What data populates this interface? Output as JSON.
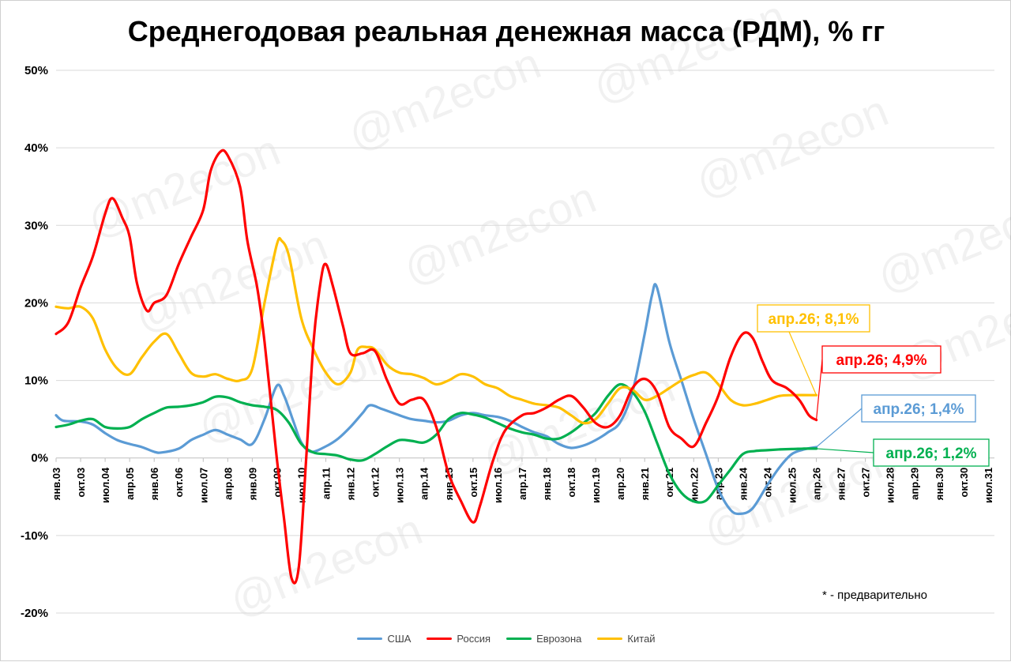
{
  "chart_data": {
    "type": "line",
    "title": "Среднегодовая реальная денежная масса (РДМ), % гг",
    "note": "* - предварительно",
    "watermark": "@m2econ",
    "ylim": [
      -20,
      50
    ],
    "yticks": [
      -20,
      -10,
      0,
      10,
      20,
      30,
      40,
      50
    ],
    "ytick_labels": [
      "-20%",
      "-10%",
      "0%",
      "10%",
      "20%",
      "30%",
      "40%",
      "50%"
    ],
    "xticks": [
      "янв.03",
      "окт.03",
      "июл.04",
      "апр.05",
      "янв.06",
      "окт.06",
      "июл.07",
      "апр.08",
      "янв.09",
      "окт.09",
      "июл.10",
      "апр.11",
      "янв.12",
      "окт.12",
      "июл.13",
      "апр.14",
      "янв.15",
      "окт.15",
      "июл.16",
      "апр.17",
      "янв.18",
      "окт.18",
      "июл.19",
      "апр.20",
      "янв.21",
      "окт.21",
      "июл.22",
      "апр.23",
      "янв.24",
      "окт.24",
      "июл.25",
      "апр.26",
      "янв.27",
      "окт.27",
      "июл.28",
      "апр.29",
      "янв.30",
      "окт.30",
      "июл.31"
    ],
    "x_step_months": 9,
    "grid": "horizontal",
    "legend_position": "bottom",
    "series": [
      {
        "name": "США",
        "color": "#5B9BD5",
        "points": [
          [
            0,
            5.5
          ],
          [
            0.3,
            4.8
          ],
          [
            1,
            4.7
          ],
          [
            1.5,
            4.3
          ],
          [
            2,
            3.2
          ],
          [
            2.5,
            2.3
          ],
          [
            3,
            1.8
          ],
          [
            3.5,
            1.4
          ],
          [
            4,
            0.8
          ],
          [
            4.3,
            0.7
          ],
          [
            5,
            1.2
          ],
          [
            5.5,
            2.3
          ],
          [
            6,
            3.0
          ],
          [
            6.5,
            3.6
          ],
          [
            7,
            3.0
          ],
          [
            7.5,
            2.4
          ],
          [
            8,
            1.8
          ],
          [
            8.5,
            5.0
          ],
          [
            9,
            9.3
          ],
          [
            9.3,
            8.0
          ],
          [
            9.7,
            4.5
          ],
          [
            10,
            2.0
          ],
          [
            10.4,
            0.8
          ],
          [
            11,
            1.5
          ],
          [
            11.5,
            2.5
          ],
          [
            12,
            4.0
          ],
          [
            12.5,
            5.8
          ],
          [
            12.8,
            6.8
          ],
          [
            13.3,
            6.3
          ],
          [
            14,
            5.5
          ],
          [
            14.5,
            5.0
          ],
          [
            15,
            4.8
          ],
          [
            15.5,
            4.6
          ],
          [
            16,
            4.8
          ],
          [
            16.5,
            5.5
          ],
          [
            17,
            5.8
          ],
          [
            17.5,
            5.5
          ],
          [
            18,
            5.3
          ],
          [
            18.5,
            4.8
          ],
          [
            19,
            4.0
          ],
          [
            19.5,
            3.3
          ],
          [
            20,
            2.8
          ],
          [
            20.5,
            1.8
          ],
          [
            21,
            1.3
          ],
          [
            21.5,
            1.6
          ],
          [
            22,
            2.3
          ],
          [
            22.5,
            3.3
          ],
          [
            23,
            4.6
          ],
          [
            23.5,
            8.5
          ],
          [
            24,
            16.0
          ],
          [
            24.3,
            21.0
          ],
          [
            24.5,
            22.0
          ],
          [
            25,
            15.0
          ],
          [
            25.5,
            10.0
          ],
          [
            26,
            5.0
          ],
          [
            26.5,
            0.5
          ],
          [
            27,
            -4.0
          ],
          [
            27.5,
            -6.7
          ],
          [
            27.9,
            -7.2
          ],
          [
            28.4,
            -6.5
          ],
          [
            29,
            -3.5
          ],
          [
            29.5,
            -1.2
          ],
          [
            30,
            0.5
          ],
          [
            30.5,
            1.1
          ],
          [
            31,
            1.4
          ]
        ]
      },
      {
        "name": "Россия",
        "color": "#FF0000",
        "points": [
          [
            0,
            16.0
          ],
          [
            0.5,
            17.5
          ],
          [
            1,
            22.0
          ],
          [
            1.5,
            26.0
          ],
          [
            2,
            31.5
          ],
          [
            2.3,
            33.5
          ],
          [
            2.7,
            31.0
          ],
          [
            3,
            28.5
          ],
          [
            3.3,
            22.5
          ],
          [
            3.7,
            19.0
          ],
          [
            4,
            20.0
          ],
          [
            4.5,
            21.0
          ],
          [
            5,
            25.0
          ],
          [
            5.5,
            28.5
          ],
          [
            6,
            32.0
          ],
          [
            6.3,
            37.0
          ],
          [
            6.7,
            39.5
          ],
          [
            7,
            39.0
          ],
          [
            7.5,
            35.0
          ],
          [
            7.8,
            28.0
          ],
          [
            8.2,
            22.0
          ],
          [
            8.5,
            15.0
          ],
          [
            9,
            0.0
          ],
          [
            9.3,
            -8.0
          ],
          [
            9.6,
            -15.5
          ],
          [
            9.9,
            -14.0
          ],
          [
            10.2,
            0.0
          ],
          [
            10.5,
            15.0
          ],
          [
            10.8,
            23.0
          ],
          [
            11,
            25.0
          ],
          [
            11.3,
            22.0
          ],
          [
            11.7,
            17.0
          ],
          [
            12,
            13.5
          ],
          [
            12.5,
            13.5
          ],
          [
            13,
            13.8
          ],
          [
            13.5,
            10.0
          ],
          [
            14,
            7.0
          ],
          [
            14.5,
            7.5
          ],
          [
            15,
            7.5
          ],
          [
            15.5,
            4.0
          ],
          [
            16,
            -2.0
          ],
          [
            16.5,
            -5.5
          ],
          [
            17,
            -8.3
          ],
          [
            17.3,
            -6.0
          ],
          [
            17.8,
            -0.5
          ],
          [
            18.3,
            3.5
          ],
          [
            19,
            5.5
          ],
          [
            19.5,
            5.8
          ],
          [
            20,
            6.5
          ],
          [
            20.5,
            7.5
          ],
          [
            21,
            8.0
          ],
          [
            21.5,
            6.5
          ],
          [
            22,
            4.5
          ],
          [
            22.5,
            4.0
          ],
          [
            23,
            5.5
          ],
          [
            23.5,
            9.0
          ],
          [
            24,
            10.2
          ],
          [
            24.5,
            8.5
          ],
          [
            25,
            4.0
          ],
          [
            25.5,
            2.5
          ],
          [
            26,
            1.5
          ],
          [
            26.5,
            4.5
          ],
          [
            27,
            8.0
          ],
          [
            27.5,
            13.0
          ],
          [
            28,
            16.0
          ],
          [
            28.4,
            15.5
          ],
          [
            28.8,
            12.5
          ],
          [
            29.2,
            10.0
          ],
          [
            29.8,
            9.0
          ],
          [
            30.3,
            7.5
          ],
          [
            30.7,
            5.5
          ],
          [
            31,
            4.9
          ]
        ]
      },
      {
        "name": "Еврозона",
        "color": "#00B050",
        "points": [
          [
            0,
            4.0
          ],
          [
            0.5,
            4.3
          ],
          [
            1,
            4.8
          ],
          [
            1.5,
            5.0
          ],
          [
            2,
            4.0
          ],
          [
            2.5,
            3.8
          ],
          [
            3,
            4.0
          ],
          [
            3.5,
            5.0
          ],
          [
            4,
            5.8
          ],
          [
            4.5,
            6.5
          ],
          [
            5,
            6.6
          ],
          [
            5.5,
            6.8
          ],
          [
            6,
            7.2
          ],
          [
            6.5,
            7.9
          ],
          [
            7,
            7.8
          ],
          [
            7.5,
            7.2
          ],
          [
            8,
            6.8
          ],
          [
            8.5,
            6.6
          ],
          [
            9,
            6.2
          ],
          [
            9.5,
            4.5
          ],
          [
            10,
            1.8
          ],
          [
            10.5,
            0.7
          ],
          [
            11,
            0.5
          ],
          [
            11.5,
            0.3
          ],
          [
            12,
            -0.2
          ],
          [
            12.5,
            -0.3
          ],
          [
            13,
            0.5
          ],
          [
            13.5,
            1.5
          ],
          [
            14,
            2.3
          ],
          [
            14.5,
            2.2
          ],
          [
            15,
            2.0
          ],
          [
            15.5,
            3.0
          ],
          [
            16,
            5.0
          ],
          [
            16.5,
            5.8
          ],
          [
            17,
            5.6
          ],
          [
            17.5,
            5.2
          ],
          [
            18,
            4.5
          ],
          [
            18.5,
            3.8
          ],
          [
            19,
            3.3
          ],
          [
            19.5,
            3.0
          ],
          [
            20,
            2.5
          ],
          [
            20.5,
            2.5
          ],
          [
            21,
            3.3
          ],
          [
            21.5,
            4.5
          ],
          [
            22,
            5.8
          ],
          [
            22.5,
            8.0
          ],
          [
            23,
            9.5
          ],
          [
            23.5,
            8.5
          ],
          [
            24,
            6.0
          ],
          [
            24.5,
            2.0
          ],
          [
            25,
            -2.0
          ],
          [
            25.5,
            -4.5
          ],
          [
            26,
            -5.6
          ],
          [
            26.5,
            -5.5
          ],
          [
            27,
            -3.5
          ],
          [
            27.5,
            -1.5
          ],
          [
            28,
            0.5
          ],
          [
            28.5,
            0.9
          ],
          [
            29,
            1.0
          ],
          [
            29.5,
            1.1
          ],
          [
            30,
            1.15
          ],
          [
            30.5,
            1.2
          ],
          [
            31,
            1.2
          ]
        ]
      },
      {
        "name": "Китай",
        "color": "#FFC000",
        "points": [
          [
            0,
            19.5
          ],
          [
            0.5,
            19.3
          ],
          [
            1,
            19.5
          ],
          [
            1.5,
            18.0
          ],
          [
            2,
            14.0
          ],
          [
            2.5,
            11.5
          ],
          [
            3,
            10.8
          ],
          [
            3.5,
            13.0
          ],
          [
            4,
            15.0
          ],
          [
            4.5,
            16.0
          ],
          [
            5,
            13.5
          ],
          [
            5.5,
            11.0
          ],
          [
            6,
            10.5
          ],
          [
            6.5,
            10.8
          ],
          [
            7,
            10.2
          ],
          [
            7.5,
            10.0
          ],
          [
            8,
            11.5
          ],
          [
            8.5,
            20.0
          ],
          [
            9,
            27.5
          ],
          [
            9.2,
            28.0
          ],
          [
            9.5,
            26.0
          ],
          [
            10,
            18.0
          ],
          [
            10.5,
            14.0
          ],
          [
            11,
            11.0
          ],
          [
            11.5,
            9.5
          ],
          [
            12,
            11.0
          ],
          [
            12.3,
            14.0
          ],
          [
            12.7,
            14.3
          ],
          [
            13,
            14.0
          ],
          [
            13.5,
            12.0
          ],
          [
            14,
            11.0
          ],
          [
            14.5,
            10.8
          ],
          [
            15,
            10.3
          ],
          [
            15.5,
            9.5
          ],
          [
            16,
            10.0
          ],
          [
            16.5,
            10.8
          ],
          [
            17,
            10.5
          ],
          [
            17.5,
            9.5
          ],
          [
            18,
            9.0
          ],
          [
            18.5,
            8.0
          ],
          [
            19,
            7.5
          ],
          [
            19.5,
            7.0
          ],
          [
            20,
            6.8
          ],
          [
            20.5,
            6.5
          ],
          [
            21,
            5.5
          ],
          [
            21.5,
            4.5
          ],
          [
            22,
            5.0
          ],
          [
            22.5,
            7.0
          ],
          [
            23,
            9.0
          ],
          [
            23.5,
            8.8
          ],
          [
            24,
            7.5
          ],
          [
            24.5,
            8.0
          ],
          [
            25,
            9.0
          ],
          [
            25.5,
            10.0
          ],
          [
            26,
            10.7
          ],
          [
            26.5,
            11.0
          ],
          [
            27,
            9.5
          ],
          [
            27.5,
            7.5
          ],
          [
            28,
            6.8
          ],
          [
            28.5,
            7.0
          ],
          [
            29,
            7.5
          ],
          [
            29.5,
            8.0
          ],
          [
            30,
            8.1
          ],
          [
            31,
            8.1
          ]
        ]
      }
    ],
    "callouts": [
      {
        "series": "Китай",
        "text": "апр.26; 8,1%",
        "color": "#FFC000"
      },
      {
        "series": "Россия",
        "text": "апр.26; 4,9%",
        "color": "#FF0000"
      },
      {
        "series": "США",
        "text": "апр.26; 1,4%",
        "color": "#5B9BD5"
      },
      {
        "series": "Еврозона",
        "text": "апр.26; 1,2%",
        "color": "#00B050"
      }
    ]
  }
}
